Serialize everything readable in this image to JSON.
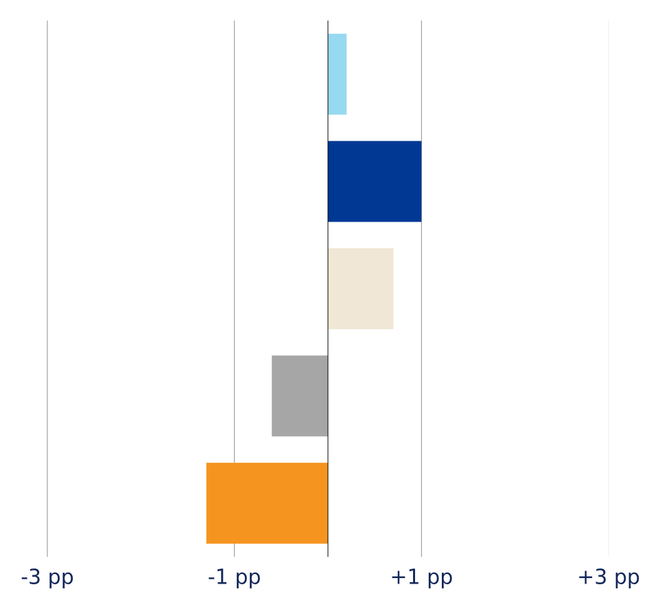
{
  "chart_data": {
    "type": "bar",
    "orientation": "horizontal",
    "values": [
      0.2,
      1.0,
      0.7,
      -0.6,
      -1.3
    ],
    "colors": [
      "#97d9f0",
      "#003894",
      "#f1e7d6",
      "#a6a6a6",
      "#f59520"
    ],
    "xlim": [
      -3,
      3
    ],
    "xticks": [
      {
        "value": -3,
        "label": "-3 pp"
      },
      {
        "value": -1,
        "label": "-1 pp"
      },
      {
        "value": 1,
        "label": "+1 pp"
      },
      {
        "value": 3,
        "label": "+3 pp"
      }
    ],
    "grid": true
  }
}
